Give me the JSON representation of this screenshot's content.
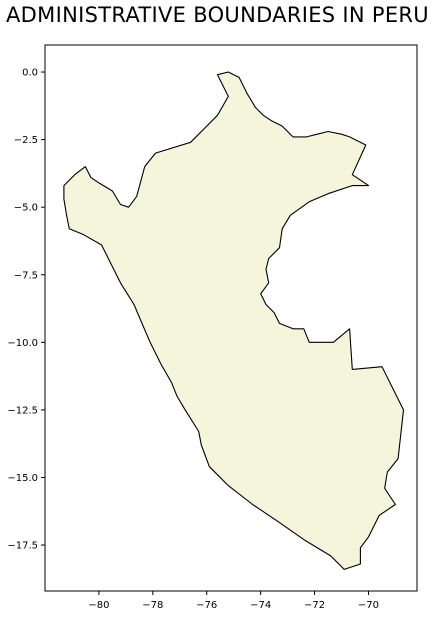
{
  "title": "ADMINISTRATIVE BOUNDARIES IN PERU",
  "map": {
    "region": "Peru",
    "fill_color": "#f5f5dc",
    "outline_color": "#000000",
    "xlim": [
      -82.0,
      -68.2
    ],
    "ylim": [
      -19.2,
      1.0
    ],
    "x_ticks": [
      -80,
      -78,
      -76,
      -74,
      -72,
      -70
    ],
    "y_ticks": [
      0.0,
      -2.5,
      -5.0,
      -7.5,
      -10.0,
      -12.5,
      -15.0,
      -17.5
    ],
    "x_tick_labels": [
      "−80",
      "−78",
      "−76",
      "−74",
      "−72",
      "−70"
    ],
    "y_tick_labels": [
      "0.0",
      "−2.5",
      "−5.0",
      "−7.5",
      "−10.0",
      "−12.5",
      "−15.0",
      "−17.5"
    ],
    "outline_lonlat": [
      [
        -75.6,
        -0.1
      ],
      [
        -75.2,
        0.0
      ],
      [
        -74.8,
        -0.2
      ],
      [
        -74.5,
        -0.8
      ],
      [
        -74.2,
        -1.3
      ],
      [
        -73.9,
        -1.6
      ],
      [
        -73.6,
        -1.8
      ],
      [
        -73.2,
        -2.0
      ],
      [
        -72.8,
        -2.4
      ],
      [
        -72.3,
        -2.4
      ],
      [
        -71.9,
        -2.3
      ],
      [
        -71.5,
        -2.2
      ],
      [
        -71.0,
        -2.3
      ],
      [
        -70.7,
        -2.4
      ],
      [
        -70.1,
        -2.7
      ],
      [
        -70.6,
        -3.8
      ],
      [
        -70.0,
        -4.2
      ],
      [
        -70.6,
        -4.2
      ],
      [
        -71.5,
        -4.5
      ],
      [
        -72.2,
        -4.8
      ],
      [
        -72.9,
        -5.3
      ],
      [
        -73.2,
        -5.8
      ],
      [
        -73.3,
        -6.5
      ],
      [
        -73.7,
        -6.9
      ],
      [
        -73.8,
        -7.3
      ],
      [
        -73.7,
        -7.8
      ],
      [
        -74.0,
        -8.2
      ],
      [
        -73.8,
        -8.6
      ],
      [
        -73.5,
        -8.9
      ],
      [
        -73.3,
        -9.3
      ],
      [
        -72.8,
        -9.5
      ],
      [
        -72.4,
        -9.5
      ],
      [
        -72.2,
        -10.0
      ],
      [
        -71.3,
        -10.0
      ],
      [
        -70.7,
        -9.5
      ],
      [
        -70.6,
        -11.0
      ],
      [
        -69.5,
        -10.9
      ],
      [
        -68.7,
        -12.5
      ],
      [
        -68.8,
        -13.4
      ],
      [
        -68.9,
        -14.3
      ],
      [
        -69.3,
        -14.8
      ],
      [
        -69.4,
        -15.4
      ],
      [
        -69.0,
        -16.0
      ],
      [
        -69.3,
        -16.2
      ],
      [
        -69.6,
        -16.4
      ],
      [
        -70.0,
        -17.2
      ],
      [
        -70.3,
        -17.6
      ],
      [
        -70.3,
        -18.2
      ],
      [
        -70.9,
        -18.4
      ],
      [
        -71.4,
        -17.9
      ],
      [
        -72.4,
        -17.3
      ],
      [
        -73.4,
        -16.6
      ],
      [
        -74.3,
        -16.0
      ],
      [
        -75.2,
        -15.3
      ],
      [
        -75.9,
        -14.6
      ],
      [
        -76.2,
        -13.8
      ],
      [
        -76.3,
        -13.3
      ],
      [
        -76.8,
        -12.5
      ],
      [
        -77.1,
        -12.0
      ],
      [
        -77.3,
        -11.5
      ],
      [
        -77.7,
        -10.8
      ],
      [
        -78.1,
        -10.0
      ],
      [
        -78.4,
        -9.3
      ],
      [
        -78.7,
        -8.6
      ],
      [
        -79.2,
        -7.8
      ],
      [
        -79.6,
        -7.0
      ],
      [
        -79.9,
        -6.4
      ],
      [
        -80.6,
        -6.0
      ],
      [
        -81.1,
        -5.8
      ],
      [
        -81.2,
        -5.3
      ],
      [
        -81.3,
        -4.7
      ],
      [
        -81.3,
        -4.2
      ],
      [
        -80.9,
        -3.8
      ],
      [
        -80.5,
        -3.5
      ],
      [
        -80.3,
        -3.9
      ],
      [
        -80.0,
        -4.1
      ],
      [
        -79.5,
        -4.4
      ],
      [
        -79.2,
        -4.9
      ],
      [
        -78.9,
        -5.0
      ],
      [
        -78.6,
        -4.6
      ],
      [
        -78.3,
        -3.5
      ],
      [
        -77.9,
        -3.0
      ],
      [
        -76.6,
        -2.6
      ],
      [
        -75.6,
        -1.6
      ],
      [
        -75.2,
        -0.9
      ],
      [
        -75.6,
        -0.1
      ]
    ]
  }
}
